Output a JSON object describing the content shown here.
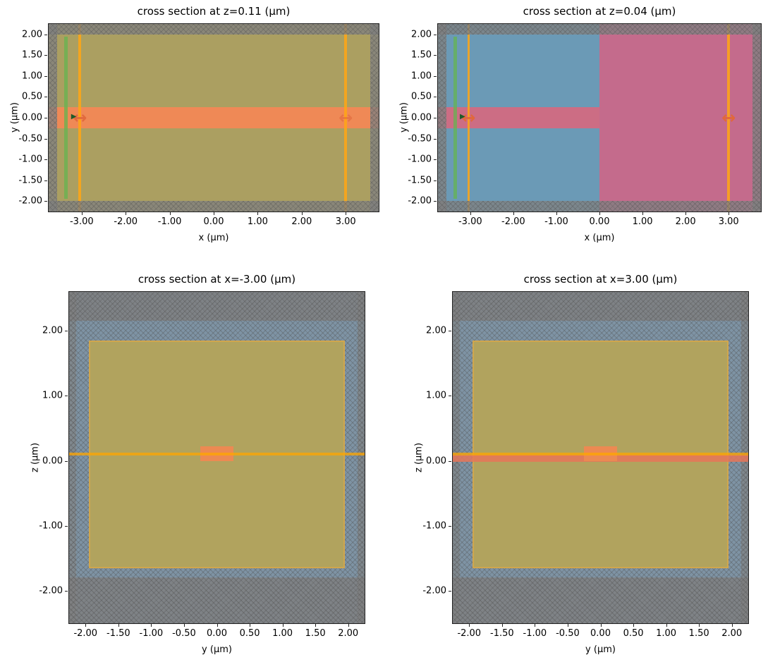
{
  "figure": {
    "background": "#ffffff"
  },
  "chart_data": [
    {
      "type": "heatmap",
      "subtype": "simulation-cross-section",
      "title": "cross section at z=0.11 (μm)",
      "xlabel": "x (μm)",
      "ylabel": "y (μm)",
      "xlim": [
        -3.75,
        3.75
      ],
      "ylim": [
        -2.25,
        2.25
      ],
      "grid": false,
      "xticks": [
        -3,
        -2,
        -1,
        0,
        1,
        2,
        3
      ],
      "xtick_labels": [
        "-3.00",
        "-2.00",
        "-1.00",
        "0.00",
        "1.00",
        "2.00",
        "3.00"
      ],
      "yticks": [
        2,
        1.5,
        1,
        0.5,
        0,
        -0.5,
        -1,
        -1.5,
        -2
      ],
      "ytick_labels": [
        "2.00",
        "1.50",
        "1.00",
        "0.50",
        "0.00",
        "-0.50",
        "-1.00",
        "-1.50",
        "-2.00"
      ],
      "layers": [
        {
          "name": "background-oxide-medium",
          "x": [
            -3.75,
            3.75
          ],
          "y": [
            -2.25,
            2.25
          ],
          "color": "#ab9f61"
        },
        {
          "name": "waveguide-core-stripe",
          "x": [
            -3.75,
            3.75
          ],
          "y": [
            -0.25,
            0.25
          ],
          "color": "#ef8956"
        },
        {
          "name": "mode-source-plane",
          "x": [
            -3.39,
            -3.31
          ],
          "y": [
            -1.95,
            1.95
          ],
          "color": "rgba(100,180,80,0.75)"
        },
        {
          "name": "flux-monitor-left",
          "x": [
            -3.07,
            -3.01
          ],
          "y": [
            -2.25,
            2.25
          ],
          "color": "rgba(255,166,20,0.85)"
        },
        {
          "name": "flux-monitor-right",
          "x": [
            2.97,
            3.03
          ],
          "y": [
            -2.25,
            2.25
          ],
          "color": "rgba(255,166,20,0.85)"
        },
        {
          "name": "pml-top",
          "x": [
            -3.75,
            3.75
          ],
          "y": [
            2.0,
            2.25
          ],
          "color": "rgba(128,128,128,0.78)",
          "hatch": true
        },
        {
          "name": "pml-bottom",
          "x": [
            -3.75,
            3.75
          ],
          "y": [
            -2.25,
            -2.0
          ],
          "color": "rgba(128,128,128,0.78)",
          "hatch": true
        },
        {
          "name": "pml-left",
          "x": [
            -3.75,
            -3.55
          ],
          "y": [
            -2.25,
            2.25
          ],
          "color": "rgba(128,128,128,0.78)",
          "hatch": true
        },
        {
          "name": "pml-right",
          "x": [
            3.55,
            3.75
          ],
          "y": [
            -2.25,
            2.25
          ],
          "color": "rgba(128,128,128,0.78)",
          "hatch": true
        }
      ],
      "arrows": [
        {
          "name": "mode-source-arrow",
          "x": -3.04,
          "y": 0,
          "glyph": "↔",
          "color": "rgba(224,104,60,0.95)",
          "size": 24
        },
        {
          "name": "source-direction-arrow",
          "x": -3.18,
          "y": 0.02,
          "glyph": "▶",
          "color": "#1e5a2a",
          "size": 10
        },
        {
          "name": "monitor-arrow-right",
          "x": 3.0,
          "y": 0,
          "glyph": "↔",
          "color": "rgba(224,104,60,0.6)",
          "size": 24
        }
      ]
    },
    {
      "type": "heatmap",
      "subtype": "simulation-cross-section",
      "title": "cross section at z=0.04 (μm)",
      "xlabel": "x (μm)",
      "ylabel": "y (μm)",
      "xlim": [
        -3.75,
        3.75
      ],
      "ylim": [
        -2.25,
        2.25
      ],
      "grid": false,
      "xticks": [
        -3,
        -2,
        -1,
        0,
        1,
        2,
        3
      ],
      "xtick_labels": [
        "-3.00",
        "-2.00",
        "-1.00",
        "0.00",
        "1.00",
        "2.00",
        "3.00"
      ],
      "yticks": [
        2,
        1.5,
        1,
        0.5,
        0,
        -0.5,
        -1,
        -1.5,
        -2
      ],
      "ytick_labels": [
        "2.00",
        "1.50",
        "1.00",
        "0.50",
        "0.00",
        "-0.50",
        "-1.00",
        "-1.50",
        "-2.00"
      ],
      "layers": [
        {
          "name": "background-oxide-left",
          "x": [
            -3.75,
            0
          ],
          "y": [
            -2.25,
            2.25
          ],
          "color": "#6b9ab6"
        },
        {
          "name": "background-slab-right",
          "x": [
            0,
            3.75
          ],
          "y": [
            -2.25,
            2.25
          ],
          "color": "#c46b8c"
        },
        {
          "name": "waveguide-core-stripe",
          "x": [
            -3.75,
            0
          ],
          "y": [
            -0.25,
            0.25
          ],
          "color": "#cc6d84"
        },
        {
          "name": "mode-source-plane",
          "x": [
            -3.39,
            -3.31
          ],
          "y": [
            -1.95,
            1.95
          ],
          "color": "rgba(100,180,80,0.75)"
        },
        {
          "name": "flux-monitor-left",
          "x": [
            -3.07,
            -3.01
          ],
          "y": [
            -2.25,
            2.25
          ],
          "color": "rgba(255,166,20,0.85)"
        },
        {
          "name": "flux-monitor-right",
          "x": [
            2.97,
            3.03
          ],
          "y": [
            -2.25,
            2.25
          ],
          "color": "rgba(255,166,20,0.85)"
        },
        {
          "name": "pml-top",
          "x": [
            -3.75,
            3.75
          ],
          "y": [
            2.0,
            2.25
          ],
          "color": "rgba(128,128,128,0.78)",
          "hatch": true
        },
        {
          "name": "pml-bottom",
          "x": [
            -3.75,
            3.75
          ],
          "y": [
            -2.25,
            -2.0
          ],
          "color": "rgba(128,128,128,0.78)",
          "hatch": true
        },
        {
          "name": "pml-left",
          "x": [
            -3.75,
            -3.55
          ],
          "y": [
            -2.25,
            2.25
          ],
          "color": "rgba(128,128,128,0.78)",
          "hatch": true
        },
        {
          "name": "pml-right",
          "x": [
            3.55,
            3.75
          ],
          "y": [
            -2.25,
            2.25
          ],
          "color": "rgba(128,128,128,0.78)",
          "hatch": true
        }
      ],
      "arrows": [
        {
          "name": "mode-source-arrow",
          "x": -3.04,
          "y": 0,
          "glyph": "↔",
          "color": "#e0683c",
          "size": 24
        },
        {
          "name": "source-direction-arrow",
          "x": -3.18,
          "y": 0.02,
          "glyph": "▶",
          "color": "#1e5a2a",
          "size": 10
        },
        {
          "name": "monitor-arrow-right",
          "x": 3.0,
          "y": 0,
          "glyph": "↔",
          "color": "#e0683c",
          "size": 24
        }
      ]
    },
    {
      "type": "heatmap",
      "subtype": "simulation-cross-section",
      "title": "cross section at x=-3.00 (μm)",
      "xlabel": "y (μm)",
      "ylabel": "z (μm)",
      "xlim": [
        -2.25,
        2.25
      ],
      "ylim": [
        -2.5,
        2.6
      ],
      "grid": false,
      "xticks": [
        -2,
        -1.5,
        -1,
        -0.5,
        0,
        0.5,
        1,
        1.5,
        2
      ],
      "xtick_labels": [
        "-2.00",
        "-1.50",
        "-1.00",
        "-0.50",
        "0.00",
        "0.50",
        "1.00",
        "1.50",
        "2.00"
      ],
      "yticks": [
        2,
        1,
        0,
        -1,
        -2
      ],
      "ytick_labels": [
        "2.00",
        "1.00",
        "0.00",
        "-1.00",
        "-2.00"
      ],
      "layers": [
        {
          "name": "background-outside",
          "x": [
            -2.25,
            2.25
          ],
          "y": [
            -2.5,
            2.6
          ],
          "color": "#7e93a4",
          "hatch": true
        },
        {
          "name": "oxide-cladding-box",
          "x": [
            -1.95,
            1.95
          ],
          "y": [
            -1.65,
            1.85
          ],
          "color": "#b1a35e",
          "border": "rgba(240,170,60,0.5)"
        },
        {
          "name": "pml-top",
          "x": [
            -2.25,
            2.25
          ],
          "y": [
            2.15,
            2.6
          ],
          "color": "rgba(128,128,128,0.8)",
          "hatch": true
        },
        {
          "name": "pml-bottom",
          "x": [
            -2.25,
            2.25
          ],
          "y": [
            -2.5,
            -1.8
          ],
          "color": "rgba(128,128,128,0.8)",
          "hatch": true
        },
        {
          "name": "pml-left",
          "x": [
            -2.25,
            -2.14
          ],
          "y": [
            -2.5,
            2.6
          ],
          "color": "rgba(128,128,128,0.6)",
          "hatch": true
        },
        {
          "name": "pml-right",
          "x": [
            2.14,
            2.25
          ],
          "y": [
            -2.5,
            2.6
          ],
          "color": "rgba(128,128,128,0.6)",
          "hatch": true
        },
        {
          "name": "waveguide-core",
          "x": [
            -0.25,
            0.25
          ],
          "y": [
            0,
            0.22
          ],
          "color": "#ec8a52"
        },
        {
          "name": "z-cross-section-line",
          "x": [
            -2.25,
            2.25
          ],
          "y": [
            0.085,
            0.13
          ],
          "color": "rgba(255,165,0,0.75)"
        }
      ],
      "arrows": []
    },
    {
      "type": "heatmap",
      "subtype": "simulation-cross-section",
      "title": "cross section at x=3.00 (μm)",
      "xlabel": "y (μm)",
      "ylabel": "z (μm)",
      "xlim": [
        -2.25,
        2.25
      ],
      "ylim": [
        -2.5,
        2.6
      ],
      "grid": false,
      "xticks": [
        -2,
        -1.5,
        -1,
        -0.5,
        0,
        0.5,
        1,
        1.5,
        2
      ],
      "xtick_labels": [
        "-2.00",
        "-1.50",
        "-1.00",
        "-0.50",
        "0.00",
        "0.50",
        "1.00",
        "1.50",
        "2.00"
      ],
      "yticks": [
        2,
        1,
        0,
        -1,
        -2
      ],
      "ytick_labels": [
        "2.00",
        "1.00",
        "0.00",
        "-1.00",
        "-2.00"
      ],
      "layers": [
        {
          "name": "background-outside",
          "x": [
            -2.25,
            2.25
          ],
          "y": [
            -2.5,
            2.6
          ],
          "color": "#7e93a4",
          "hatch": true
        },
        {
          "name": "oxide-cladding-box",
          "x": [
            -1.95,
            1.95
          ],
          "y": [
            -1.65,
            1.85
          ],
          "color": "#b1a35e",
          "border": "rgba(240,170,60,0.5)"
        },
        {
          "name": "pml-top",
          "x": [
            -2.25,
            2.25
          ],
          "y": [
            2.15,
            2.6
          ],
          "color": "rgba(128,128,128,0.8)",
          "hatch": true
        },
        {
          "name": "pml-bottom",
          "x": [
            -2.25,
            2.25
          ],
          "y": [
            -2.5,
            -1.8
          ],
          "color": "rgba(128,128,128,0.8)",
          "hatch": true
        },
        {
          "name": "pml-left",
          "x": [
            -2.25,
            -2.14
          ],
          "y": [
            -2.5,
            2.6
          ],
          "color": "rgba(128,128,128,0.6)",
          "hatch": true
        },
        {
          "name": "pml-right",
          "x": [
            2.14,
            2.25
          ],
          "y": [
            -2.5,
            2.6
          ],
          "color": "rgba(128,128,128,0.6)",
          "hatch": true
        },
        {
          "name": "slab-layer",
          "x": [
            -2.25,
            2.25
          ],
          "y": [
            -0.02,
            0.09
          ],
          "color": "rgba(232,118,88,0.85)"
        },
        {
          "name": "waveguide-core",
          "x": [
            -0.25,
            0.25
          ],
          "y": [
            0,
            0.22
          ],
          "color": "#ec8a52"
        },
        {
          "name": "z-cross-section-line",
          "x": [
            -2.25,
            2.25
          ],
          "y": [
            0.085,
            0.13
          ],
          "color": "rgba(255,165,0,0.75)"
        }
      ],
      "arrows": []
    }
  ]
}
